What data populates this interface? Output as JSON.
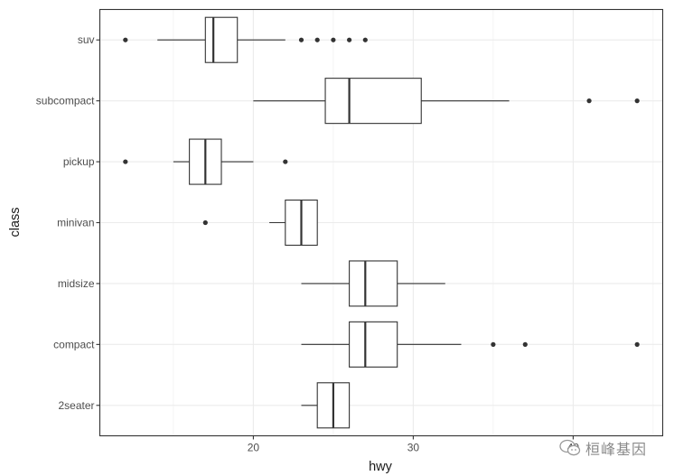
{
  "chart_data": {
    "type": "boxplot",
    "orientation": "horizontal",
    "title": "",
    "xlabel": "hwy",
    "ylabel": "class",
    "xlim": [
      10.4,
      45.6
    ],
    "x_ticks": [
      20,
      30,
      40
    ],
    "x_tick_labels": [
      "20",
      "30",
      "40"
    ],
    "grid": true,
    "theme": "bw",
    "categories": [
      "2seater",
      "compact",
      "midsize",
      "minivan",
      "pickup",
      "subcompact",
      "suv"
    ],
    "boxes": [
      {
        "class": "2seater",
        "whisker_low": 23,
        "q1": 24,
        "median": 25,
        "q3": 26,
        "whisker_high": 26,
        "outliers": []
      },
      {
        "class": "compact",
        "whisker_low": 23,
        "q1": 26,
        "median": 27,
        "q3": 29,
        "whisker_high": 33,
        "outliers": [
          35,
          37,
          44
        ]
      },
      {
        "class": "midsize",
        "whisker_low": 23,
        "q1": 26,
        "median": 27,
        "q3": 29,
        "whisker_high": 32,
        "outliers": []
      },
      {
        "class": "minivan",
        "whisker_low": 21,
        "q1": 22,
        "median": 23,
        "q3": 24,
        "whisker_high": 24,
        "outliers": [
          17
        ]
      },
      {
        "class": "pickup",
        "whisker_low": 15,
        "q1": 16,
        "median": 17,
        "q3": 18,
        "whisker_high": 20,
        "outliers": [
          12,
          22
        ]
      },
      {
        "class": "subcompact",
        "whisker_low": 20,
        "q1": 24.5,
        "median": 26,
        "q3": 30.5,
        "whisker_high": 36,
        "outliers": [
          41,
          44
        ]
      },
      {
        "class": "suv",
        "whisker_low": 14,
        "q1": 17,
        "median": 17.5,
        "q3": 19,
        "whisker_high": 22,
        "outliers": [
          12,
          23,
          24,
          25,
          26,
          27
        ]
      }
    ],
    "colors": {
      "box_stroke": "#333333",
      "box_fill": "#ffffff",
      "outlier": "#333333",
      "grid_major": "#ebebeb",
      "grid_minor": "#f2f2f2",
      "panel_border": "#333333"
    }
  },
  "watermark": {
    "text": "桓峰基因",
    "icon": "wechat-icon"
  }
}
